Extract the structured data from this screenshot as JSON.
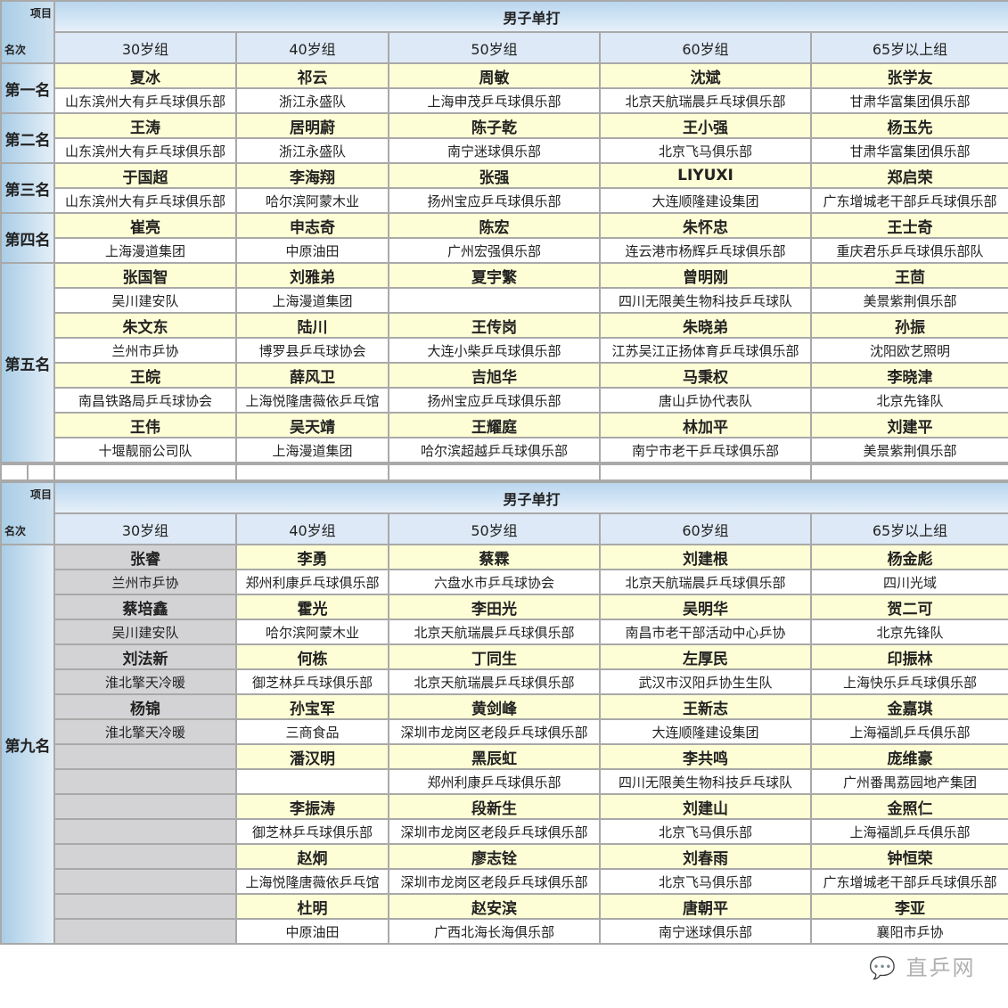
{
  "header": {
    "item_label": "项目",
    "rank_label": "名次",
    "event": "男子单打",
    "age_groups": [
      "30岁组",
      "40岁组",
      "50岁组",
      "60岁组",
      "65岁以上组"
    ]
  },
  "table1": [
    {
      "rank": "第一名",
      "entries": [
        [
          [
            "夏冰",
            "山东滨州大有乒乓球俱乐部"
          ],
          [
            "祁云",
            "浙江永盛队"
          ],
          [
            "周敏",
            "上海申茂乒乓球俱乐部"
          ],
          [
            "沈斌",
            "北京天航瑞晨乒乓球俱乐部"
          ],
          [
            "张学友",
            "甘肃华富集团俱乐部"
          ]
        ]
      ]
    },
    {
      "rank": "第二名",
      "entries": [
        [
          [
            "王涛",
            "山东滨州大有乒乓球俱乐部"
          ],
          [
            "居明蔚",
            "浙江永盛队"
          ],
          [
            "陈子乾",
            "南宁迷球俱乐部"
          ],
          [
            "王小强",
            "北京飞马俱乐部"
          ],
          [
            "杨玉先",
            "甘肃华富集团俱乐部"
          ]
        ]
      ]
    },
    {
      "rank": "第三名",
      "entries": [
        [
          [
            "于国超",
            "山东滨州大有乒乓球俱乐部"
          ],
          [
            "李海翔",
            "哈尔滨阿蒙木业"
          ],
          [
            "张强",
            "扬州宝应乒乓球俱乐部"
          ],
          [
            "LIYUXI",
            "大连顺隆建设集团"
          ],
          [
            "郑启荣",
            "广东增城老干部乒乓球俱乐部"
          ]
        ]
      ]
    },
    {
      "rank": "第四名",
      "entries": [
        [
          [
            "崔亮",
            "上海漫道集团"
          ],
          [
            "申志奇",
            "中原油田"
          ],
          [
            "陈宏",
            "广州宏强俱乐部"
          ],
          [
            "朱怀忠",
            "连云港市杨辉乒乓球俱乐部"
          ],
          [
            "王士奇",
            "重庆君乐乒乓球俱乐部队"
          ]
        ]
      ]
    },
    {
      "rank": "第五名",
      "entries": [
        [
          [
            "张国智",
            "吴川建安队"
          ],
          [
            "刘雅弟",
            "上海漫道集团"
          ],
          [
            "夏宇繁",
            ""
          ],
          [
            "曾明刚",
            "四川无限美生物科技乒乓球队"
          ],
          [
            "王茴",
            "美景紫荆俱乐部"
          ]
        ],
        [
          [
            "朱文东",
            "兰州市乒协"
          ],
          [
            "陆川",
            "博罗县乒乓球协会"
          ],
          [
            "王传岗",
            "大连小柴乒乓球俱乐部"
          ],
          [
            "朱晓弟",
            "江苏吴江正扬体育乒乓球俱乐部"
          ],
          [
            "孙振",
            "沈阳欧艺照明"
          ]
        ],
        [
          [
            "王皖",
            "南昌铁路局乒乓球协会"
          ],
          [
            "薛风卫",
            "上海悦隆唐薇依乒乓馆"
          ],
          [
            "吉旭华",
            "扬州宝应乒乓球俱乐部"
          ],
          [
            "马秉权",
            "唐山乒协代表队"
          ],
          [
            "李晓津",
            "北京先锋队"
          ]
        ],
        [
          [
            "王伟",
            "十堰靓丽公司队"
          ],
          [
            "吴天靖",
            "上海漫道集团"
          ],
          [
            "王耀庭",
            "哈尔滨超越乒乓球俱乐部"
          ],
          [
            "林加平",
            "南宁市老干乒乓球俱乐部"
          ],
          [
            "刘建平",
            "美景紫荆俱乐部"
          ]
        ]
      ]
    }
  ],
  "table2": [
    {
      "rank": "第九名",
      "entries": [
        [
          [
            "张睿",
            "兰州市乒协"
          ],
          [
            "李勇",
            "郑州利康乒乓球俱乐部"
          ],
          [
            "蔡霖",
            "六盘水市乒乓球协会"
          ],
          [
            "刘建根",
            "北京天航瑞晨乒乓球俱乐部"
          ],
          [
            "杨金彪",
            "四川光域"
          ]
        ],
        [
          [
            "蔡培鑫",
            "吴川建安队"
          ],
          [
            "霍光",
            "哈尔滨阿蒙木业"
          ],
          [
            "李田光",
            "北京天航瑞晨乒乓球俱乐部"
          ],
          [
            "吴明华",
            "南昌市老干部活动中心乒协"
          ],
          [
            "贺二可",
            "北京先锋队"
          ]
        ],
        [
          [
            "刘法新",
            "淮北擎天冷暖"
          ],
          [
            "何栋",
            "御芝林乒乓球俱乐部"
          ],
          [
            "丁同生",
            "北京天航瑞晨乒乓球俱乐部"
          ],
          [
            "左厚民",
            "武汉市汉阳乒协生生队"
          ],
          [
            "印振林",
            "上海快乐乒乓球俱乐部"
          ]
        ],
        [
          [
            "杨锦",
            "淮北擎天冷暖"
          ],
          [
            "孙宝军",
            "三商食品"
          ],
          [
            "黄剑峰",
            "深圳市龙岗区老段乒乓球俱乐部"
          ],
          [
            "王新志",
            "大连顺隆建设集团"
          ],
          [
            "金嘉琪",
            "上海福凯乒乓俱乐部"
          ]
        ],
        [
          [
            "",
            ""
          ],
          [
            "潘汉明",
            ""
          ],
          [
            "黑辰虹",
            "郑州利康乒乓球俱乐部"
          ],
          [
            "李共鸣",
            "四川无限美生物科技乒乓球队"
          ],
          [
            "庞维豪",
            "广州番禺荔园地产集团"
          ]
        ],
        [
          [
            "",
            ""
          ],
          [
            "李振涛",
            "御芝林乒乓球俱乐部"
          ],
          [
            "段新生",
            "深圳市龙岗区老段乒乓球俱乐部"
          ],
          [
            "刘建山",
            "北京飞马俱乐部"
          ],
          [
            "金照仁",
            "上海福凯乒乓俱乐部"
          ]
        ],
        [
          [
            "",
            ""
          ],
          [
            "赵炯",
            "上海悦隆唐薇依乒乓馆"
          ],
          [
            "廖志铨",
            "深圳市龙岗区老段乒乓球俱乐部"
          ],
          [
            "刘春雨",
            "北京飞马俱乐部"
          ],
          [
            "钟恒荣",
            "广东增城老干部乒乓球俱乐部"
          ]
        ],
        [
          [
            "",
            ""
          ],
          [
            "杜明",
            "中原油田"
          ],
          [
            "赵安滨",
            "广西北海长海俱乐部"
          ],
          [
            "唐朝平",
            "南宁迷球俱乐部"
          ],
          [
            "李亚",
            "襄阳市乒协"
          ]
        ]
      ]
    }
  ],
  "watermark": "直乒网",
  "colors": {
    "name_row": "#fefed6",
    "header_blue": "#b9d6ee",
    "gray_cell": "#d3d3d6"
  }
}
